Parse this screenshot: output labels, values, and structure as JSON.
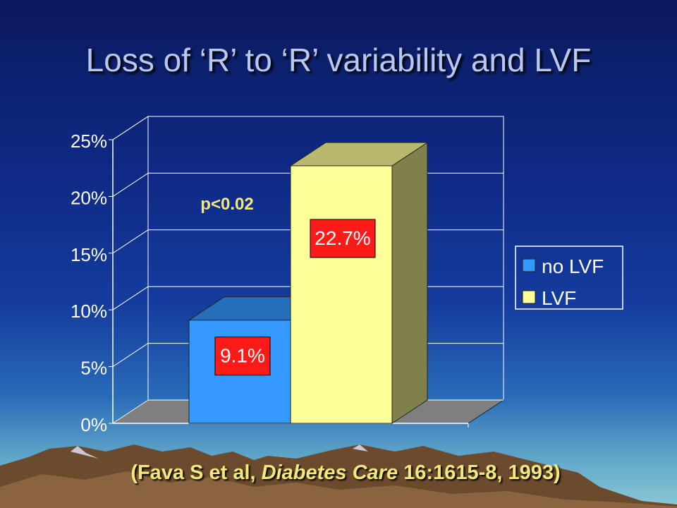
{
  "title": "Loss of ‘R’ to ‘R’ variability and LVF",
  "annotation": "p<0.02",
  "citation": {
    "prefix": "(Fava S et al, ",
    "journal": "Diabetes Care",
    "suffix": " 16:1615-8, 1993)"
  },
  "chart_data": {
    "type": "bar",
    "categories": [
      ""
    ],
    "series": [
      {
        "name": "no LVF",
        "values": [
          9.1
        ],
        "label": "9.1%",
        "color": "#3399ff"
      },
      {
        "name": "LVF",
        "values": [
          22.7
        ],
        "label": "22.7%",
        "color": "#ffff99"
      }
    ],
    "y_ticks": [
      "0%",
      "5%",
      "10%",
      "15%",
      "20%",
      "25%"
    ],
    "ylim": [
      0,
      25
    ],
    "grid": true,
    "legend": "right",
    "style": "3d"
  }
}
